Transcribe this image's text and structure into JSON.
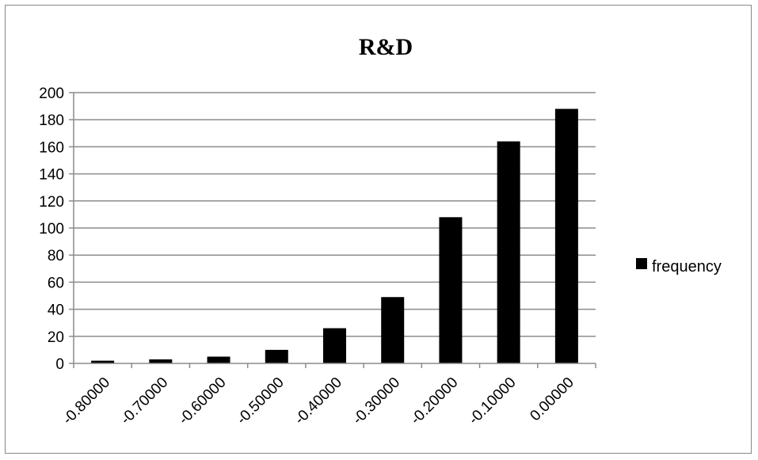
{
  "chart_data": {
    "type": "bar",
    "title": "R&D",
    "xlabel": "",
    "ylabel": "",
    "categories": [
      "-0.80000",
      "-0.70000",
      "-0.60000",
      "-0.50000",
      "-0.40000",
      "-0.30000",
      "-0.20000",
      "-0.10000",
      "0.00000"
    ],
    "series": [
      {
        "name": "frequency",
        "values": [
          2,
          3,
          5,
          10,
          26,
          49,
          108,
          164,
          188
        ],
        "color": "#000000"
      }
    ],
    "ylim": [
      0,
      200
    ],
    "yticks": [
      0,
      20,
      40,
      60,
      80,
      100,
      120,
      140,
      160,
      180,
      200
    ],
    "grid": "horizontal",
    "legend_position": "right"
  }
}
